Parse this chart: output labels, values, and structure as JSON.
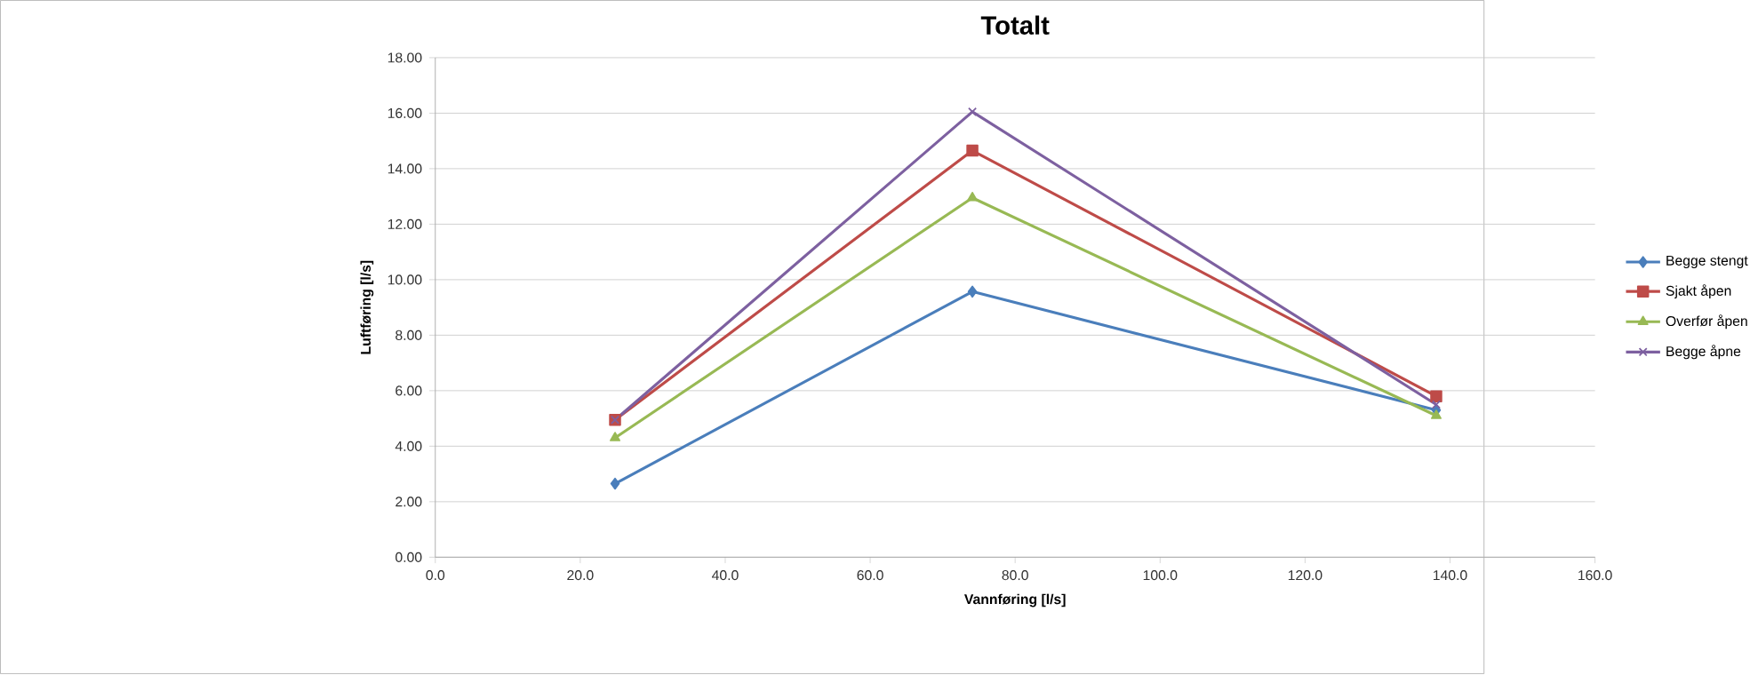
{
  "chart_data": {
    "type": "line",
    "title": "Totalt",
    "xlabel": "Vannføring [l/s]",
    "ylabel": "Luftføring [l/s]",
    "x": [
      24.8,
      74.1,
      138.1
    ],
    "series": [
      {
        "name": "Begge stengt",
        "color": "#4a7ebb",
        "marker": "diamond",
        "values": [
          2.65,
          9.57,
          5.3
        ]
      },
      {
        "name": "Sjakt åpen",
        "color": "#be4b48",
        "marker": "square",
        "values": [
          4.95,
          14.65,
          5.8
        ]
      },
      {
        "name": "Overfør åpen",
        "color": "#98b954",
        "marker": "triangle",
        "values": [
          4.3,
          12.95,
          5.1
        ]
      },
      {
        "name": "Begge åpne",
        "color": "#7d60a0",
        "marker": "cross",
        "values": [
          4.95,
          16.05,
          5.5
        ]
      }
    ],
    "xlim": [
      0,
      160
    ],
    "xticks": [
      {
        "value": 0,
        "label": "0.0"
      },
      {
        "value": 20,
        "label": "20.0"
      },
      {
        "value": 40,
        "label": "40.0"
      },
      {
        "value": 60,
        "label": "60.0"
      },
      {
        "value": 80,
        "label": "80.0"
      },
      {
        "value": 100,
        "label": "100.0"
      },
      {
        "value": 120,
        "label": "120.0"
      },
      {
        "value": 140,
        "label": "140.0"
      },
      {
        "value": 160,
        "label": "160.0"
      }
    ],
    "ylim": [
      0,
      18
    ],
    "yticks": [
      {
        "value": 0,
        "label": "0.00"
      },
      {
        "value": 2,
        "label": "2.00"
      },
      {
        "value": 4,
        "label": "4.00"
      },
      {
        "value": 6,
        "label": "6.00"
      },
      {
        "value": 8,
        "label": "8.00"
      },
      {
        "value": 10,
        "label": "10.00"
      },
      {
        "value": 12,
        "label": "12.00"
      },
      {
        "value": 14,
        "label": "14.00"
      },
      {
        "value": 16,
        "label": "16.00"
      },
      {
        "value": 18,
        "label": "18.00"
      }
    ],
    "grid": "y",
    "legend": "right",
    "line_style": "solid"
  }
}
